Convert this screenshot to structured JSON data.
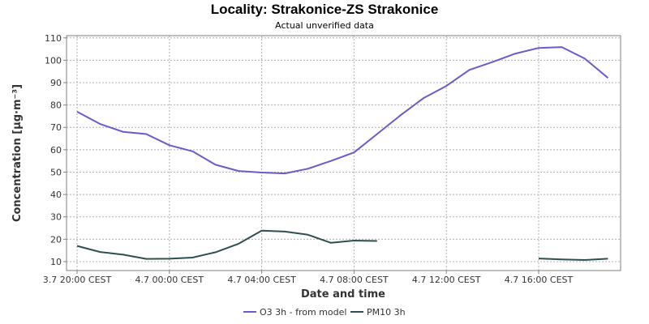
{
  "chart_data": {
    "type": "line",
    "title": "Locality: Strakonice-ZS Strakonice",
    "subtitle": "Actual unverified data",
    "xlabel": "Date and time",
    "ylabel": "Concentration [µg·m⁻³]",
    "ylim": [
      6,
      111
    ],
    "yticks": [
      10,
      20,
      30,
      40,
      50,
      60,
      70,
      80,
      90,
      100,
      110
    ],
    "xticks": [
      {
        "hour": 0,
        "label": "3.7 20:00 CEST"
      },
      {
        "hour": 4,
        "label": "4.7 00:00 CEST"
      },
      {
        "hour": 8,
        "label": "4.7 04:00 CEST"
      },
      {
        "hour": 12,
        "label": "4.7 08:00 CEST"
      },
      {
        "hour": 16,
        "label": "4.7 12:00 CEST"
      },
      {
        "hour": 20,
        "label": "4.7 16:00 CEST"
      }
    ],
    "grid": true,
    "legend_position": "bottom",
    "series": [
      {
        "name": "O3 3h - from model",
        "color": "#6a5acd",
        "points": [
          [
            0,
            77
          ],
          [
            1,
            71.5
          ],
          [
            2,
            68
          ],
          [
            3,
            67
          ],
          [
            4,
            62
          ],
          [
            5,
            59.3
          ],
          [
            6,
            53.3
          ],
          [
            7,
            50.5
          ],
          [
            8,
            49.8
          ],
          [
            9,
            49.4
          ],
          [
            10,
            51.5
          ],
          [
            11,
            55
          ],
          [
            12,
            58.8
          ],
          [
            13,
            67
          ],
          [
            14,
            75.3
          ],
          [
            15,
            83
          ],
          [
            16,
            88.5
          ],
          [
            17,
            95.7
          ],
          [
            18,
            99.2
          ],
          [
            19,
            103
          ],
          [
            20,
            105.5
          ],
          [
            21,
            105.9
          ],
          [
            22,
            100.7
          ],
          [
            23,
            92.1
          ]
        ]
      },
      {
        "name": "PM10 3h",
        "color": "#2f4f4f",
        "points": [
          [
            0,
            17
          ],
          [
            1,
            14.3
          ],
          [
            2,
            13.1
          ],
          [
            3,
            11.2
          ],
          [
            4,
            11.3
          ],
          [
            5,
            11.8
          ],
          [
            6,
            14.2
          ],
          [
            7,
            18
          ],
          [
            8,
            23.8
          ],
          [
            9,
            23.4
          ],
          [
            10,
            22
          ],
          [
            11,
            18.4
          ],
          [
            12,
            19.4
          ],
          [
            13,
            19.2
          ],
          [
            20,
            11.4
          ],
          [
            21,
            11
          ],
          [
            22,
            10.7
          ],
          [
            23,
            11.3
          ]
        ]
      }
    ]
  }
}
